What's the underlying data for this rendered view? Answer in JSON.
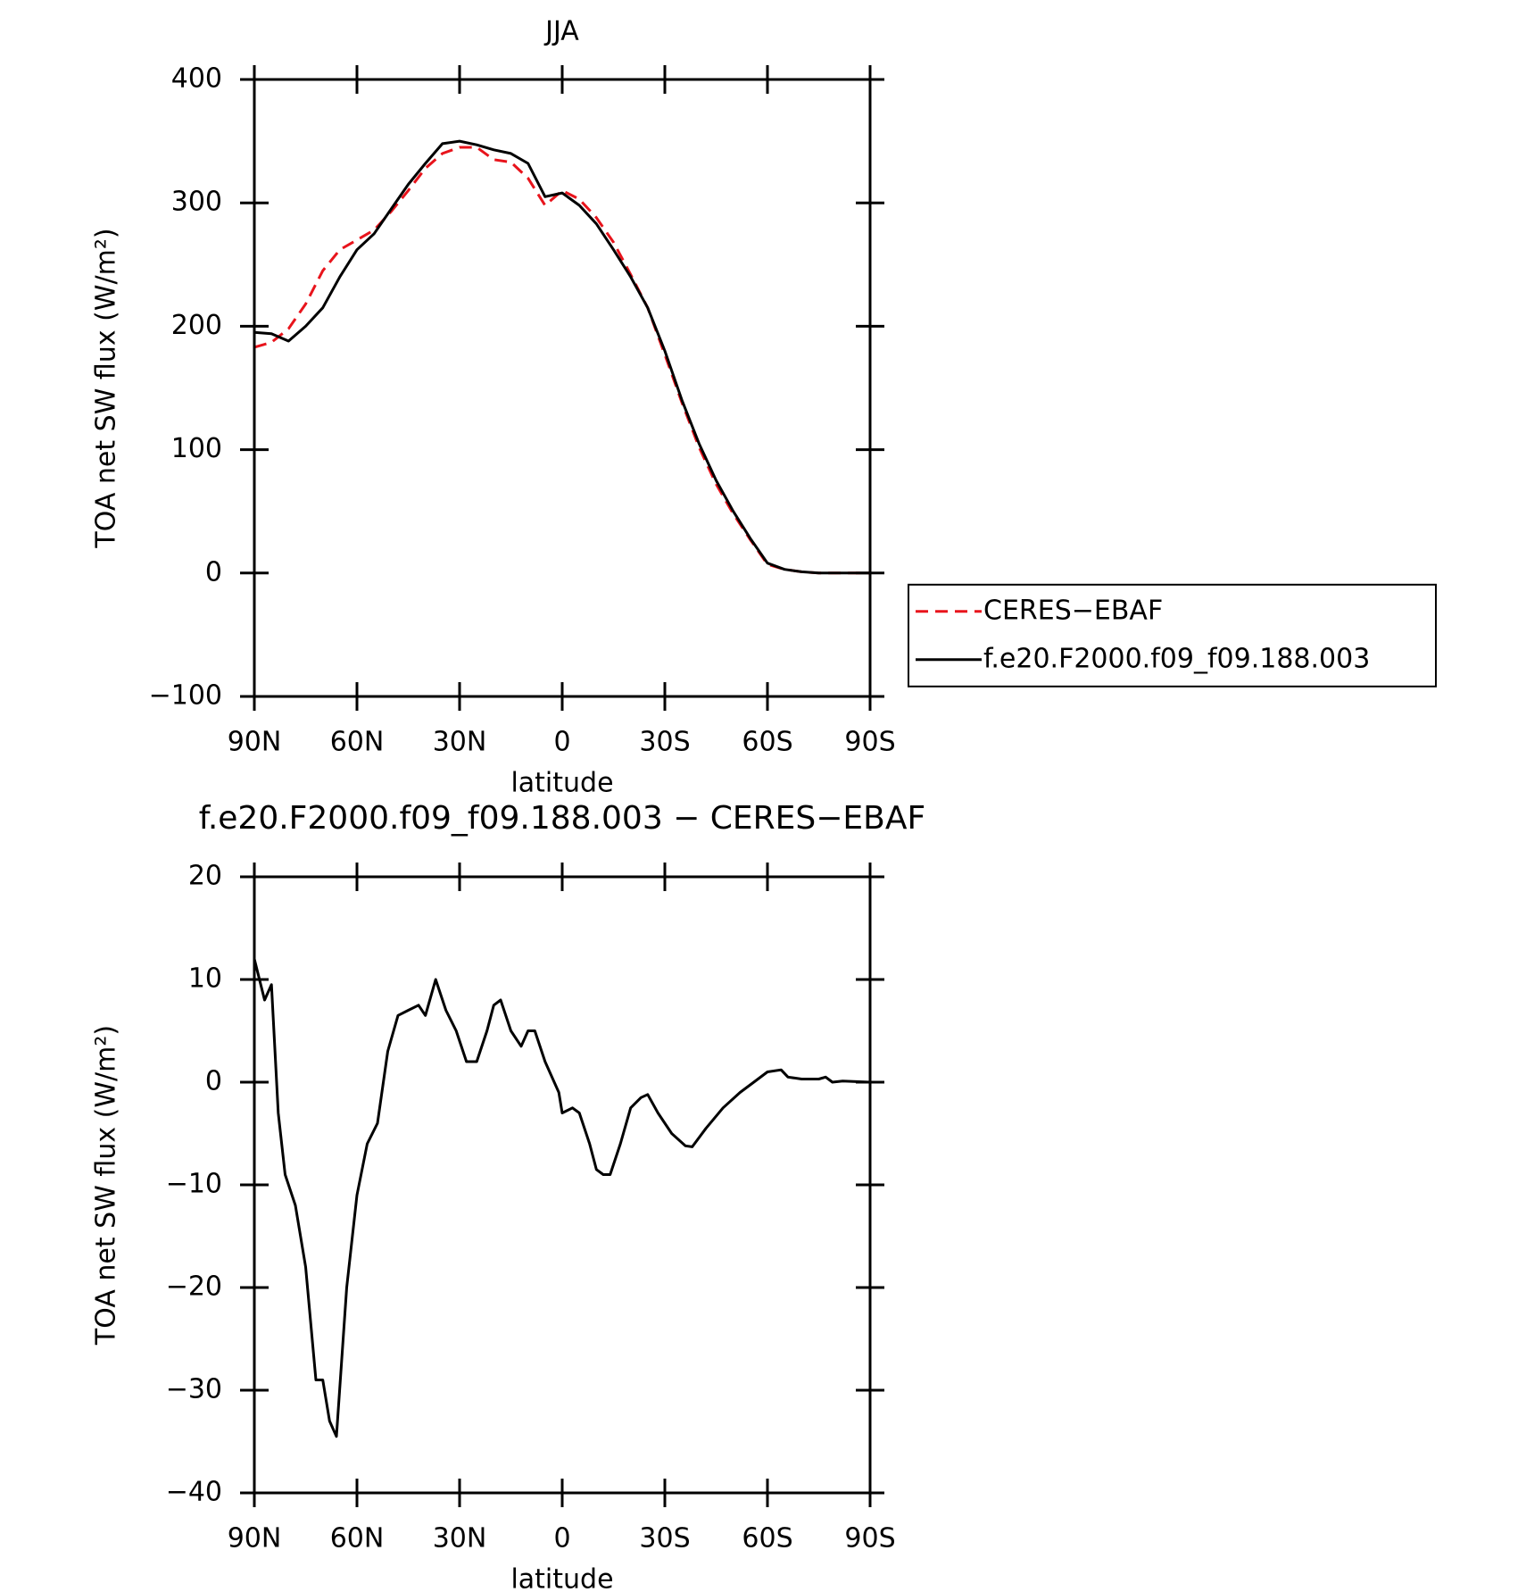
{
  "chart_data": [
    {
      "type": "line",
      "title": "JJA",
      "xlabel": "latitude",
      "ylabel": "TOA net SW flux (W/m²)",
      "x": [
        90,
        85,
        80,
        75,
        70,
        65,
        60,
        55,
        50,
        45,
        40,
        35,
        30,
        25,
        20,
        15,
        10,
        5,
        0,
        -5,
        -10,
        -15,
        -20,
        -25,
        -30,
        -35,
        -40,
        -45,
        -50,
        -55,
        -60,
        -65,
        -70,
        -75,
        -80,
        -85,
        -90
      ],
      "series": [
        {
          "name": "CERES−EBAF",
          "color": "#e8141c",
          "dash": true,
          "values": [
            183,
            187,
            198,
            218,
            245,
            262,
            270,
            278,
            293,
            310,
            328,
            340,
            345,
            345,
            335,
            333,
            320,
            298,
            310,
            303,
            288,
            268,
            242,
            215,
            177,
            138,
            102,
            72,
            48,
            27,
            7,
            3,
            1,
            0,
            0,
            0,
            0
          ]
        },
        {
          "name": "f.e20.F2000.f09_f09.188.003",
          "color": "#000000",
          "dash": false,
          "values": [
            195,
            194,
            188,
            200,
            215,
            240,
            262,
            275,
            295,
            315,
            332,
            348,
            350,
            347,
            343,
            340,
            332,
            305,
            308,
            298,
            283,
            262,
            240,
            215,
            180,
            140,
            105,
            75,
            50,
            28,
            8,
            3,
            1,
            0,
            0,
            0,
            0
          ]
        }
      ],
      "xlim": [
        90,
        -90
      ],
      "xticks": [
        {
          "value": 90,
          "label": "90N"
        },
        {
          "value": 60,
          "label": "60N"
        },
        {
          "value": 30,
          "label": "30N"
        },
        0,
        {
          "value": -30,
          "label": "30S"
        },
        {
          "value": -60,
          "label": "60S"
        },
        {
          "value": -90,
          "label": "90S"
        }
      ],
      "ylim": [
        -100,
        400
      ],
      "yticks": [
        {
          "value": -100,
          "label": "−100"
        },
        0,
        100,
        200,
        300,
        400
      ],
      "legend": "right"
    },
    {
      "type": "line",
      "title": "f.e20.F2000.f09_f09.188.003 − CERES−EBAF",
      "xlabel": "latitude",
      "ylabel": "TOA net SW flux (W/m²)",
      "x": [
        90,
        87,
        85,
        83,
        81,
        78,
        75,
        72,
        70,
        68,
        66,
        63,
        60,
        57,
        54,
        51,
        48,
        45,
        42,
        40,
        37,
        34,
        31,
        28,
        25,
        22,
        20,
        18,
        15,
        12,
        10,
        8,
        5,
        1,
        0,
        -3,
        -5,
        -8,
        -10,
        -12,
        -14,
        -17,
        -20,
        -23,
        -25,
        -28,
        -32,
        -36,
        -38,
        -42,
        -47,
        -52,
        -56,
        -60,
        -64,
        -66,
        -70,
        -75,
        -77,
        -79,
        -82,
        -90
      ],
      "color": "#000000",
      "values": [
        12,
        8,
        9.5,
        -3,
        -9,
        -12,
        -18,
        -29,
        -29,
        -33,
        -34.5,
        -20,
        -11,
        -6,
        -4,
        3,
        6.5,
        7,
        7.5,
        6.5,
        10,
        7,
        5,
        2,
        2,
        5,
        7.5,
        8,
        5,
        3.5,
        5,
        5,
        2,
        -1,
        -3,
        -2.5,
        -3,
        -6,
        -8.5,
        -9,
        -9,
        -6,
        -2.5,
        -1.5,
        -1.2,
        -3,
        -5,
        -6.2,
        -6.3,
        -4.5,
        -2.5,
        -1,
        0,
        1,
        1.2,
        0.5,
        0.3,
        0.3,
        0.5,
        0,
        0.1,
        0
      ],
      "xlim": [
        90,
        -90
      ],
      "xticks": [
        {
          "value": 90,
          "label": "90N"
        },
        {
          "value": 60,
          "label": "60N"
        },
        {
          "value": 30,
          "label": "30N"
        },
        0,
        {
          "value": -30,
          "label": "30S"
        },
        {
          "value": -60,
          "label": "60S"
        },
        {
          "value": -90,
          "label": "90S"
        }
      ],
      "ylim": [
        -40,
        20
      ],
      "yticks": [
        {
          "value": -40,
          "label": "−40"
        },
        {
          "value": -30,
          "label": "−30"
        },
        {
          "value": -20,
          "label": "−20"
        },
        {
          "value": -10,
          "label": "−10"
        },
        0,
        10,
        20
      ]
    }
  ]
}
